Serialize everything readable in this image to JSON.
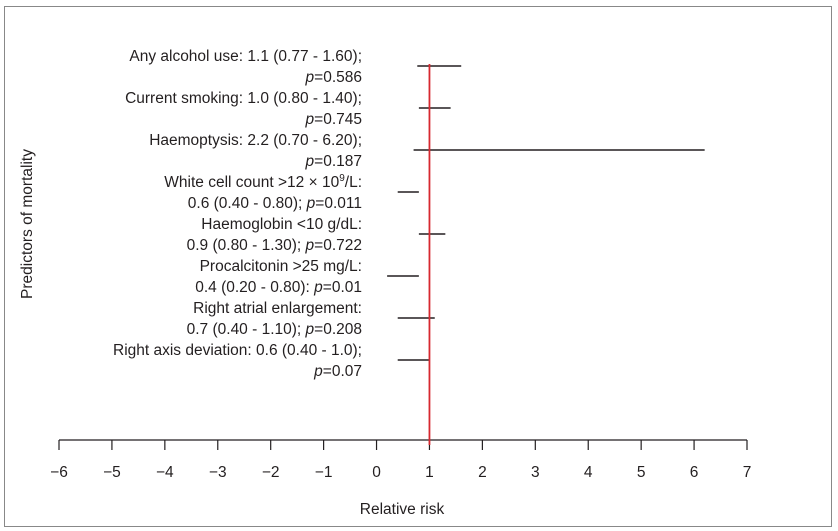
{
  "chart_data": {
    "type": "forest",
    "xlabel": "Relative risk",
    "ylabel": "Predictors of mortality",
    "xlim": [
      -6,
      7
    ],
    "xticks": [
      "−6",
      "−5",
      "−4",
      "−3",
      "−2",
      "−1",
      "0",
      "1",
      "2",
      "3",
      "4",
      "5",
      "6",
      "7"
    ],
    "reference_line": 1,
    "reference_color": "#d7282f",
    "line_color": "#231f20",
    "rows": [
      {
        "line1": "Any alcohol use: 1.1 (0.77 - 1.60);",
        "line2": "p=0.586",
        "estimate": 1.1,
        "lower": 0.77,
        "upper": 1.6
      },
      {
        "line1": "Current smoking: 1.0 (0.80 - 1.40);",
        "line2": "p=0.745",
        "estimate": 1.0,
        "lower": 0.8,
        "upper": 1.4
      },
      {
        "line1": "Haemoptysis: 2.2 (0.70 - 6.20);",
        "line2": "p=0.187",
        "estimate": 2.2,
        "lower": 0.7,
        "upper": 6.2
      },
      {
        "line1": "White cell count >12 × 10⁹/L:",
        "line2": "0.6 (0.40 - 0.80); p=0.011",
        "estimate": 0.6,
        "lower": 0.4,
        "upper": 0.8
      },
      {
        "line1": "Haemoglobin <10 g/dL:",
        "line2": "0.9 (0.80 - 1.30); p=0.722",
        "estimate": 0.9,
        "lower": 0.8,
        "upper": 1.3
      },
      {
        "line1": "Procalcitonin >25 mg/L:",
        "line2": "0.4 (0.20 - 0.80): p=0.01",
        "estimate": 0.4,
        "lower": 0.2,
        "upper": 0.8
      },
      {
        "line1": "Right atrial enlargement:",
        "line2": "0.7 (0.40 - 1.10); p=0.208",
        "estimate": 0.7,
        "lower": 0.4,
        "upper": 1.1
      },
      {
        "line1": "Right axis deviation: 0.6 (0.40 - 1.0);",
        "line2": "p=0.07",
        "estimate": 0.6,
        "lower": 0.4,
        "upper": 1.0
      }
    ]
  }
}
